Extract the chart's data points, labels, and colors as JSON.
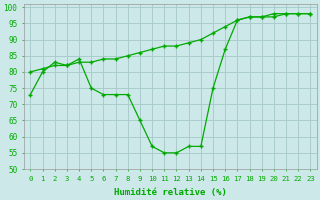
{
  "xlabel": "Humidité relative (%)",
  "background_color": "#cce8e8",
  "grid_color": "#aacccc",
  "line_color": "#00aa00",
  "x_data": [
    0,
    1,
    2,
    3,
    4,
    5,
    6,
    7,
    8,
    9,
    10,
    11,
    12,
    13,
    14,
    15,
    16,
    17,
    18,
    19,
    20,
    21,
    22,
    23
  ],
  "y_main": [
    73,
    80,
    83,
    82,
    84,
    75,
    73,
    73,
    73,
    65,
    57,
    55,
    55,
    57,
    57,
    75,
    87,
    96,
    97,
    97,
    98,
    98,
    98,
    98
  ],
  "y_smooth": [
    80,
    81,
    82,
    82,
    83,
    83,
    84,
    84,
    85,
    86,
    87,
    88,
    88,
    89,
    90,
    92,
    94,
    96,
    97,
    97,
    97,
    98,
    98,
    98
  ],
  "ylim": [
    50,
    101
  ],
  "yticks": [
    50,
    55,
    60,
    65,
    70,
    75,
    80,
    85,
    90,
    95,
    100
  ],
  "xlim": [
    -0.5,
    23.5
  ],
  "xlabel_color": "#00aa00"
}
